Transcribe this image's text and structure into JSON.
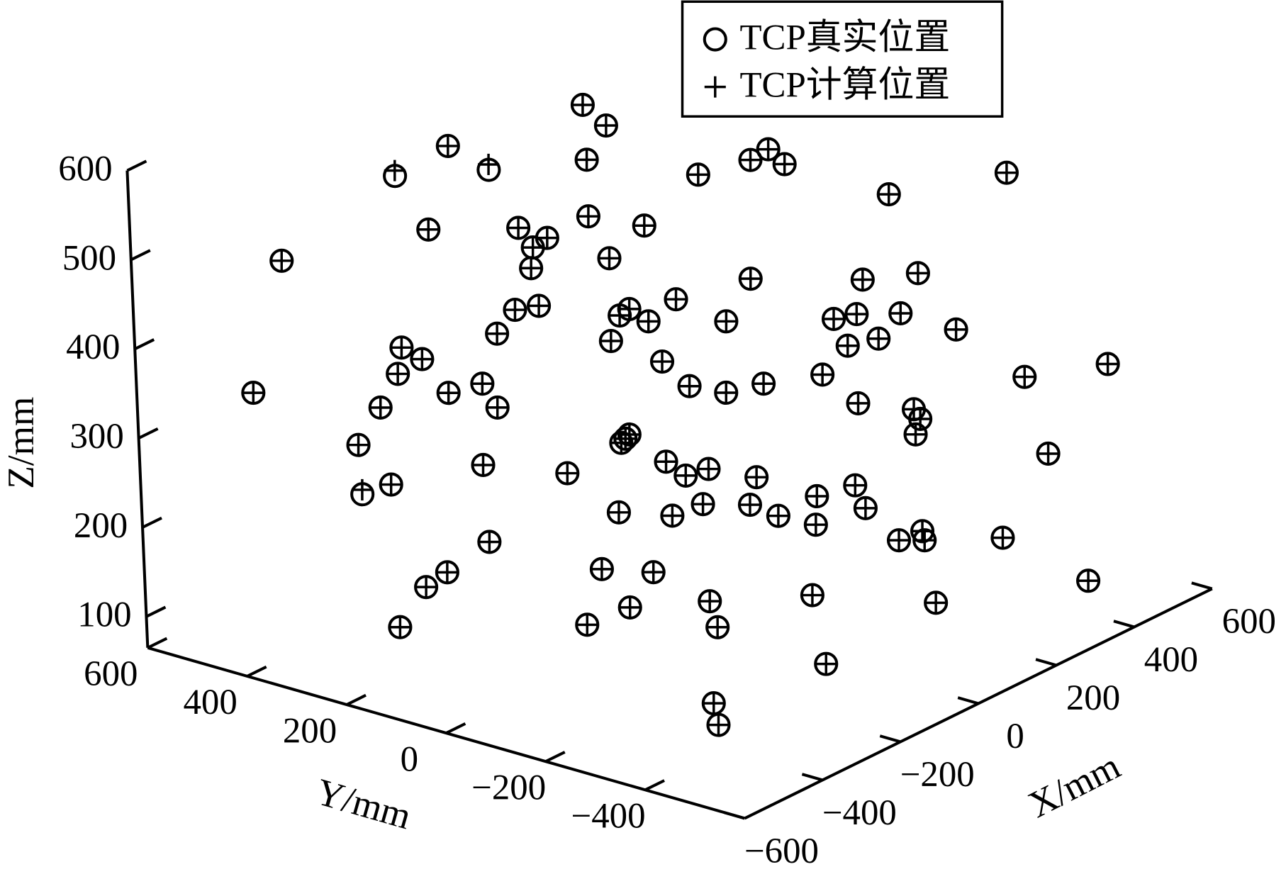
{
  "chart_data": {
    "type": "scatter3d",
    "xlabel": "X/mm",
    "ylabel": "Y/mm",
    "zlabel": "Z/mm",
    "xlim": [
      -600,
      600
    ],
    "ylim": [
      -600,
      600
    ],
    "zlim": [
      65,
      600
    ],
    "xticks": [
      {
        "value": -600,
        "label": "−600"
      },
      {
        "value": -400,
        "label": "−400"
      },
      {
        "value": -200,
        "label": "−200"
      },
      0,
      200,
      400,
      600
    ],
    "yticks": [
      600,
      400,
      200,
      0,
      {
        "value": -200,
        "label": "−200"
      },
      {
        "value": -400,
        "label": "−400"
      }
    ],
    "zticks": [
      100,
      200,
      300,
      400,
      500,
      600
    ],
    "grid": false,
    "legend": "upper right",
    "series": [
      {
        "name": "TCP真实位置",
        "marker": "circle",
        "color": "#000000",
        "x": [
          47,
          1,
          -216,
          -195,
          -298,
          -81,
          122,
          102,
          138,
          42,
          389,
          256,
          -263,
          -164,
          -132,
          -148,
          -83,
          -20,
          -151,
          -62,
          -429,
          97,
          223,
          285,
          -170,
          -143,
          -42,
          -52,
          -21,
          11,
          67,
          188,
          214,
          264,
          324,
          -193,
          -63,
          238,
          203,
          -300,
          -278,
          -306,
          -7,
          493,
          -470,
          -251,
          -212,
          -195,
          22,
          64,
          106,
          171,
          401,
          -326,
          212,
          271,
          280,
          274,
          -351,
          -49,
          -52,
          -58,
          420,
          -215,
          -119,
          -8,
          14,
          40,
          93,
          -350,
          -320,
          160,
          203,
          213,
          32,
          86,
          114,
          -63,
          -3,
          158,
          278,
          279,
          249,
          367,
          -210,
          -260,
          -285,
          -86,
          -27,
          460,
          149,
          35,
          287,
          -55,
          -314,
          -109,
          6,
          -13,
          -249,
          -316
        ],
        "y": [
          191,
          108,
          256,
          192,
          300,
          84,
          -122,
          -101,
          -141,
          -42,
          -389,
          -255,
          265,
          162,
          130,
          147,
          84,
          22,
          150,
          62,
          432,
          -95,
          -221,
          -284,
          171,
          144,
          42,
          54,
          21,
          -11,
          -66,
          -187,
          -213,
          -262,
          -325,
          191,
          65,
          -236,
          -201,
          300,
          277,
          305,
          8,
          -494,
          468,
          248,
          210,
          195,
          -22,
          -62,
          -105,
          -173,
          -398,
          327,
          -210,
          -275,
          -280,
          -274,
          355,
          47,
          53,
          57,
          -424,
          213,
          120,
          8,
          -13,
          -39,
          -93,
          352,
          317,
          -160,
          -204,
          -215,
          -31,
          -83,
          -117,
          64,
          4,
          -157,
          -276,
          -279,
          -251,
          -367,
          211,
          259,
          283,
          85,
          28,
          -462,
          -151,
          -34,
          -290,
          56,
          316,
          101,
          -71,
          -304,
          -263,
          -325
        ],
        "z": [
          600,
          600,
          600,
          579,
          577,
          583,
          584,
          573,
          567,
          560,
          543,
          526,
          515,
          512,
          499,
          489,
          520,
          506,
          466,
          472,
          489,
          440,
          432,
          436,
          420,
          423,
          414,
          407,
          399,
          422,
          394,
          390,
          394,
          392,
          371,
          395,
          379,
          365,
          359,
          385,
          371,
          356,
          353,
          323,
          344,
          332,
          340,
          312,
          324,
          314,
          322,
          329,
          313,
          319,
          294,
          285,
          273,
          256,
          278,
          274,
          269,
          265,
          227,
          249,
          234,
          241,
          224,
          230,
          218,
          223,
          233,
          193,
          203,
          177,
          191,
          187,
          174,
          187,
          180,
          161,
          147,
          137,
          139,
          135,
          162,
          131,
          116,
          125,
          118,
          82,
          83,
          82,
          67,
          80,
          72,
          65,
          65,
          65,
          65,
          65
        ]
      },
      {
        "name": "TCP计算位置",
        "marker": "plus",
        "color": "#000000",
        "x": [
          47,
          1,
          -216,
          -195,
          -298,
          -81,
          122,
          102,
          138,
          42,
          389,
          256,
          -263,
          -164,
          -132,
          -148,
          -83,
          -20,
          -151,
          -62,
          -429,
          97,
          223,
          285,
          -170,
          -143,
          -42,
          -52,
          -21,
          11,
          67,
          188,
          214,
          264,
          324,
          -193,
          -63,
          238,
          203,
          -300,
          -278,
          -306,
          -7,
          493,
          -470,
          -251,
          -212,
          -195,
          22,
          64,
          106,
          171,
          401,
          -326,
          212,
          271,
          280,
          274,
          -351,
          -49,
          -52,
          -58,
          420,
          -215,
          -119,
          -8,
          14,
          40,
          93,
          -350,
          -320,
          160,
          203,
          213,
          32,
          86,
          114,
          -63,
          -3,
          158,
          278,
          279,
          249,
          367,
          -210,
          -260,
          -285,
          -86,
          -27,
          460,
          149,
          35,
          287,
          -55,
          -314,
          -109,
          6,
          -13,
          -249,
          -316
        ],
        "y": [
          191,
          108,
          256,
          192,
          300,
          84,
          -122,
          -101,
          -141,
          -42,
          -389,
          -255,
          265,
          162,
          130,
          147,
          84,
          22,
          150,
          62,
          432,
          -95,
          -221,
          -284,
          171,
          144,
          42,
          54,
          21,
          -11,
          -66,
          -187,
          -213,
          -262,
          -325,
          191,
          65,
          -236,
          -201,
          300,
          277,
          305,
          8,
          -494,
          468,
          248,
          210,
          195,
          -22,
          -62,
          -105,
          -173,
          -398,
          327,
          -210,
          -275,
          -280,
          -274,
          355,
          47,
          53,
          57,
          -424,
          213,
          120,
          8,
          -13,
          -39,
          -93,
          352,
          317,
          -160,
          -204,
          -215,
          -31,
          -83,
          -117,
          64,
          4,
          -157,
          -276,
          -279,
          -251,
          -367,
          211,
          259,
          283,
          85,
          28,
          -462,
          -151,
          -34,
          -290,
          56,
          316,
          101,
          -71,
          -304,
          -263,
          -325
        ],
        "z": [
          600,
          600,
          600,
          585,
          583,
          583,
          584,
          573,
          567,
          560,
          543,
          526,
          515,
          512,
          499,
          489,
          520,
          506,
          466,
          472,
          489,
          440,
          432,
          436,
          420,
          423,
          414,
          407,
          399,
          422,
          394,
          390,
          394,
          392,
          371,
          395,
          379,
          365,
          359,
          385,
          371,
          356,
          353,
          323,
          344,
          332,
          340,
          312,
          324,
          314,
          322,
          329,
          313,
          319,
          294,
          285,
          273,
          256,
          278,
          274,
          269,
          265,
          227,
          249,
          234,
          241,
          224,
          230,
          218,
          228,
          233,
          193,
          203,
          177,
          191,
          187,
          174,
          187,
          180,
          161,
          147,
          137,
          139,
          135,
          162,
          131,
          116,
          125,
          118,
          82,
          83,
          82,
          67,
          80,
          72,
          65,
          65,
          65,
          65,
          65
        ]
      }
    ]
  }
}
